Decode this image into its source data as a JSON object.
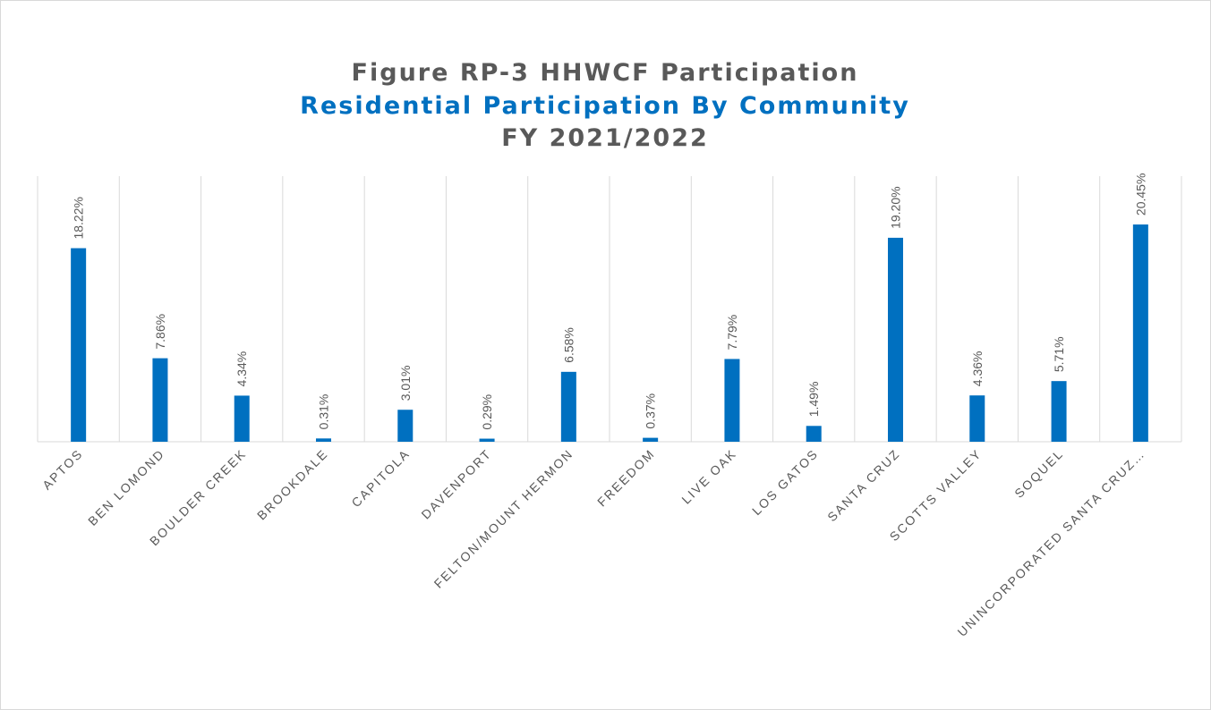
{
  "chart_data": {
    "type": "bar",
    "title": "Figure RP-3 HHWCF Participation",
    "subtitle": "Residential Participation By Community",
    "period": "FY 2021/2022",
    "categories": [
      "APTOS",
      "BEN LOMOND",
      "BOULDER CREEK",
      "BROOKDALE",
      "CAPITOLA",
      "DAVENPORT",
      "FELTON/MOUNT HERMON",
      "FREEDOM",
      "LIVE OAK",
      "LOS GATOS",
      "SANTA CRUZ",
      "SCOTTS VALLEY",
      "SOQUEL",
      "UNINCORPORATED SANTA CRUZ…"
    ],
    "values": [
      18.22,
      7.86,
      4.34,
      0.31,
      3.01,
      0.29,
      6.58,
      0.37,
      7.79,
      1.49,
      19.2,
      4.36,
      5.71,
      20.45
    ],
    "value_labels": [
      "18.22%",
      "7.86%",
      "4.34%",
      "0.31%",
      "3.01%",
      "0.29%",
      "6.58%",
      "0.37%",
      "7.79%",
      "1.49%",
      "19.20%",
      "4.36%",
      "5.71%",
      "20.45%"
    ],
    "color": "#0070c0"
  }
}
